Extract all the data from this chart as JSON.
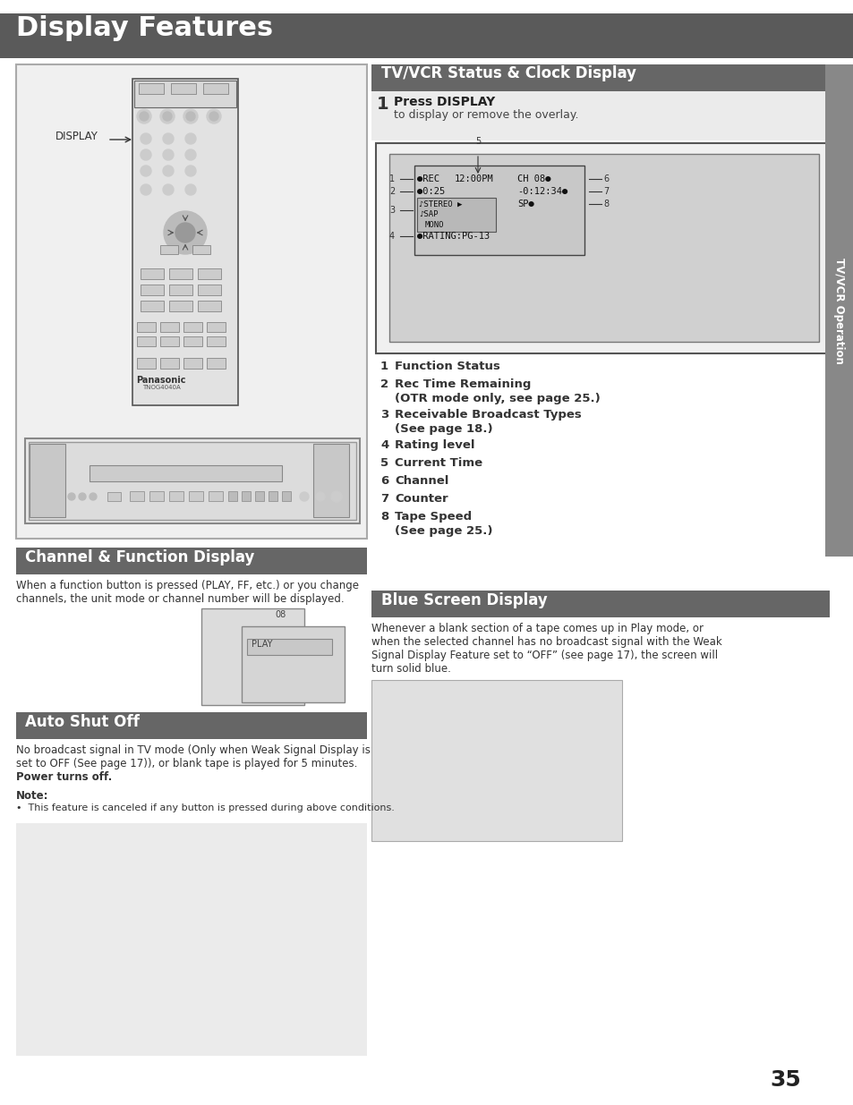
{
  "page_bg": "#ffffff",
  "header_bg": "#5a5a5a",
  "header_text": "Display Features",
  "header_text_color": "#ffffff",
  "section_bg": "#666666",
  "section_text_color": "#ffffff",
  "section1_title": "TV/VCR Status & Clock Display",
  "section2_title": "Channel & Function Display",
  "section3_title": "Auto Shut Off",
  "section4_title": "Blue Screen Display",
  "body_text_color": "#222222",
  "sidebar_bg": "#888888",
  "sidebar_text": "TV/VCR Operation",
  "sidebar_text_color": "#ffffff",
  "press_display_bold": "Press DISPLAY",
  "press_display_normal": "to display or remove the overlay.",
  "numbered_items": [
    [
      "1",
      "Function Status",
      ""
    ],
    [
      "2",
      "Rec Time Remaining",
      "(OTR mode only, see page 25.)"
    ],
    [
      "3",
      "Receivable Broadcast Types",
      "(See page 18.)"
    ],
    [
      "4",
      "Rating level",
      ""
    ],
    [
      "5",
      "Current Time",
      ""
    ],
    [
      "6",
      "Channel",
      ""
    ],
    [
      "7",
      "Counter",
      ""
    ],
    [
      "8",
      "Tape Speed",
      "(See page 25.)"
    ]
  ],
  "channel_body_line1": "When a function button is pressed (PLAY, FF, etc.) or you change",
  "channel_body_line2": "channels, the unit mode or channel number will be displayed.",
  "auto_line1": "No broadcast signal in TV mode (Only when Weak Signal Display is",
  "auto_line2": "set to OFF (See page 17)), or blank tape is played for 5 minutes.",
  "auto_line3": "Power turns off.",
  "note_title": "Note:",
  "note_body": "•  This feature is canceled if any button is pressed during above conditions.",
  "blue_line1": "Whenever a blank section of a tape comes up in Play mode, or",
  "blue_line2": "when the selected channel has no broadcast signal with the Weak",
  "blue_line3": "Signal Display Feature set to “OFF” (see page 17), the screen will",
  "blue_line4": "turn solid blue.",
  "page_number": "35"
}
